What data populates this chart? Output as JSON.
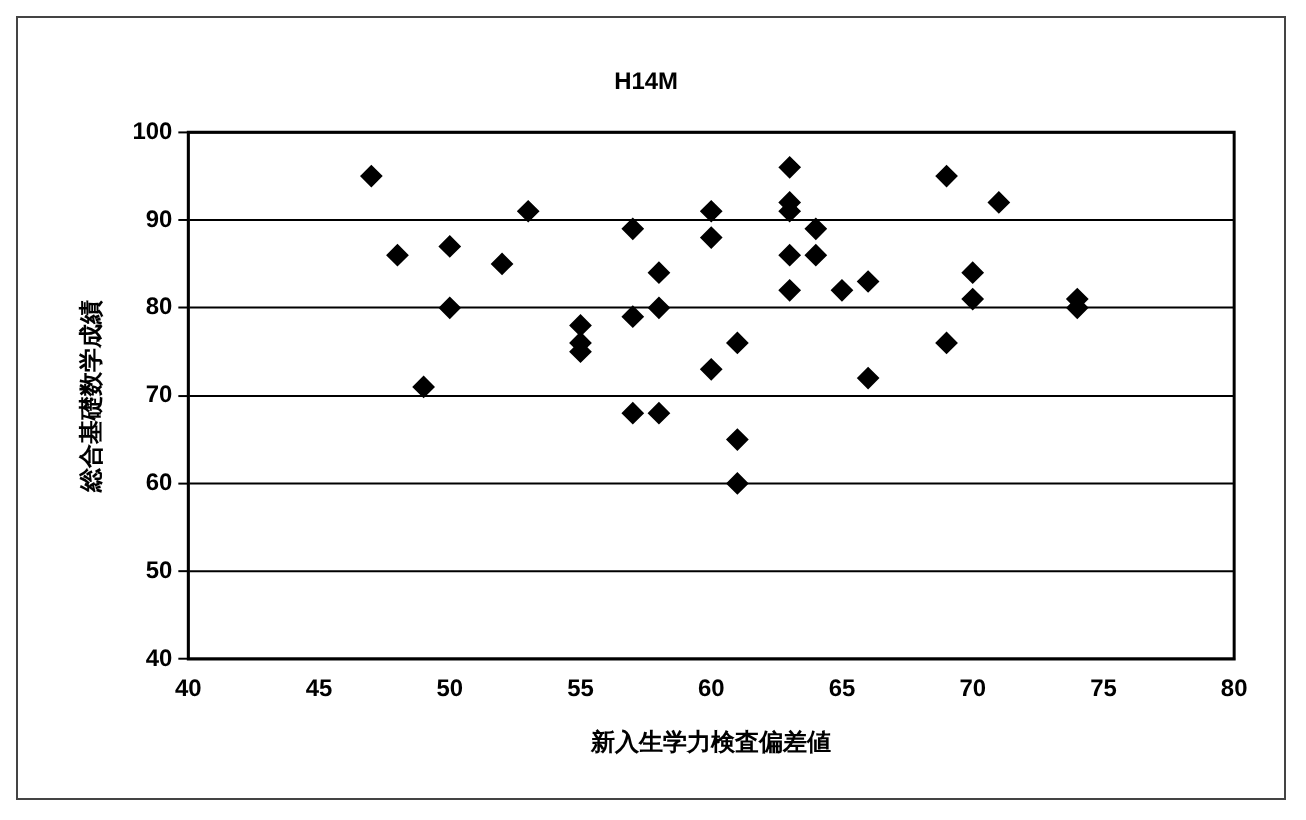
{
  "chart_data": {
    "type": "scatter",
    "title": "H14M",
    "xlabel": "新入生学力検査偏差値",
    "ylabel": "総合基礎数学成績",
    "x": [
      47,
      48,
      49,
      50,
      50,
      52,
      53,
      55,
      55,
      55,
      57,
      57,
      57,
      58,
      58,
      58,
      60,
      60,
      60,
      61,
      61,
      61,
      63,
      63,
      63,
      63,
      63,
      64,
      64,
      65,
      66,
      66,
      69,
      69,
      70,
      70,
      71,
      74,
      74
    ],
    "values": [
      95,
      86,
      71,
      87,
      80,
      85,
      91,
      78,
      76,
      75,
      89,
      79,
      68,
      84,
      80,
      68,
      91,
      88,
      73,
      76,
      65,
      60,
      96,
      92,
      91,
      86,
      82,
      89,
      86,
      82,
      83,
      72,
      95,
      76,
      84,
      81,
      92,
      81,
      80
    ],
    "color": "#000000",
    "marker": "diamond",
    "xlim": [
      40,
      80
    ],
    "xticks": [
      40,
      45,
      50,
      55,
      60,
      65,
      70,
      75,
      80
    ],
    "ylim": [
      40,
      100
    ],
    "yticks": [
      40,
      50,
      60,
      70,
      80,
      90,
      100
    ],
    "grid": "y",
    "legend": false
  }
}
